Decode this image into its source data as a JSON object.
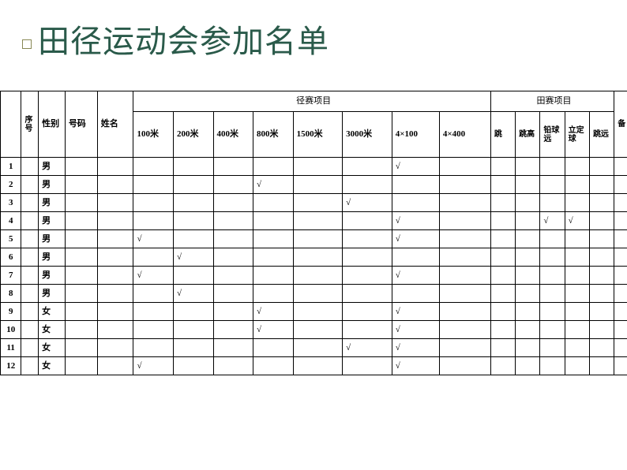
{
  "title": "田径运动会参加名单",
  "headers": {
    "seq": "序号",
    "gender": "性别",
    "number": "号码",
    "name": "姓名",
    "track_group": "径赛项目",
    "field_group": "田赛项目",
    "track": [
      "100米",
      "200米",
      "400米",
      "800米",
      "1500米",
      "3000米",
      "4×100",
      "4×400"
    ],
    "field": [
      "跳高",
      "跳远",
      "铅球",
      "立定跳远",
      "备注"
    ]
  },
  "field_short": {
    "f0": "跳",
    "f1": "跳高",
    "f2": "铅球",
    "f3a": "立定",
    "f3b": "远",
    "f3c": "球",
    "f4a": "跳远",
    "rem": "备"
  },
  "rows": [
    {
      "i": "1",
      "g": "男",
      "t": [
        "",
        "",
        "",
        "",
        "",
        "",
        "√",
        ""
      ],
      "f": [
        "",
        "",
        "",
        "",
        ""
      ]
    },
    {
      "i": "2",
      "g": "男",
      "t": [
        "",
        "",
        "",
        "√",
        "",
        "",
        "",
        ""
      ],
      "f": [
        "",
        "",
        "",
        "",
        ""
      ]
    },
    {
      "i": "3",
      "g": "男",
      "t": [
        "",
        "",
        "",
        "",
        "",
        "√",
        "",
        ""
      ],
      "f": [
        "",
        "",
        "",
        "",
        ""
      ]
    },
    {
      "i": "4",
      "g": "男",
      "t": [
        "",
        "",
        "",
        "",
        "",
        "",
        "√",
        ""
      ],
      "f": [
        "",
        "",
        "√",
        "√",
        ""
      ]
    },
    {
      "i": "5",
      "g": "男",
      "t": [
        "√",
        "",
        "",
        "",
        "",
        "",
        "√",
        ""
      ],
      "f": [
        "",
        "",
        "",
        "",
        ""
      ]
    },
    {
      "i": "6",
      "g": "男",
      "t": [
        "",
        "√",
        "",
        "",
        "",
        "",
        "",
        ""
      ],
      "f": [
        "",
        "",
        "",
        "",
        ""
      ]
    },
    {
      "i": "7",
      "g": "男",
      "t": [
        "√",
        "",
        "",
        "",
        "",
        "",
        "√",
        ""
      ],
      "f": [
        "",
        "",
        "",
        "",
        ""
      ]
    },
    {
      "i": "8",
      "g": "男",
      "t": [
        "",
        "√",
        "",
        "",
        "",
        "",
        "",
        ""
      ],
      "f": [
        "",
        "",
        "",
        "",
        ""
      ]
    },
    {
      "i": "9",
      "g": "女",
      "t": [
        "",
        "",
        "",
        "√",
        "",
        "",
        "√",
        ""
      ],
      "f": [
        "",
        "",
        "",
        "",
        ""
      ]
    },
    {
      "i": "10",
      "g": "女",
      "t": [
        "",
        "",
        "",
        "√",
        "",
        "",
        "√",
        ""
      ],
      "f": [
        "",
        "",
        "",
        "",
        ""
      ]
    },
    {
      "i": "11",
      "g": "女",
      "t": [
        "",
        "",
        "",
        "",
        "",
        "√",
        "√",
        ""
      ],
      "f": [
        "",
        "",
        "",
        "",
        ""
      ]
    },
    {
      "i": "12",
      "g": "女",
      "t": [
        "√",
        "",
        "",
        "",
        "",
        "",
        "√",
        ""
      ],
      "f": [
        "",
        "",
        "",
        "",
        ""
      ]
    }
  ],
  "colors": {
    "title": "#2a5a4a",
    "border": "#000000",
    "background": "#ffffff"
  }
}
